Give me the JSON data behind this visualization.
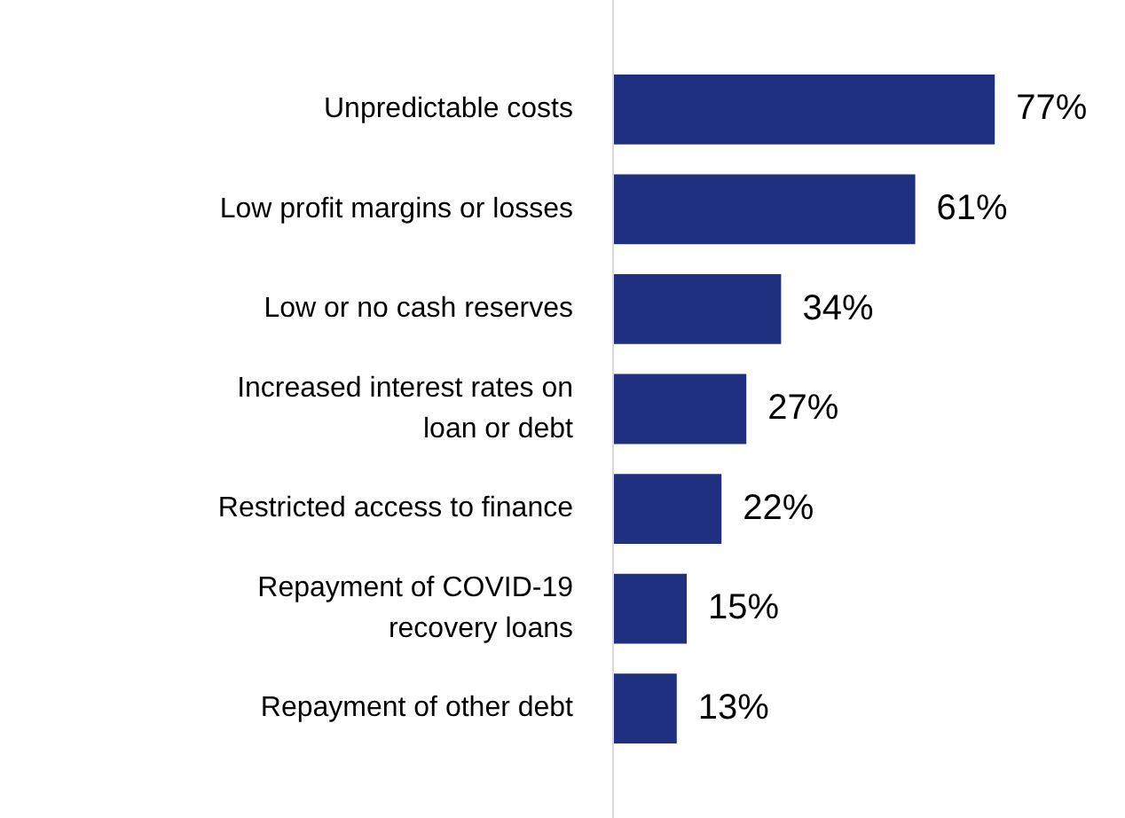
{
  "chart_data": {
    "type": "bar",
    "orientation": "horizontal",
    "tick_labels": "y",
    "categories": [
      "Unpredictable costs",
      "Low profit margins or losses",
      "Low or no cash reserves",
      "Increased interest rates on loan or debt",
      "Restricted access to finance",
      "Repayment of COVID-19 recovery loans",
      "Repayment of other debt"
    ],
    "values": [
      77,
      61,
      34,
      27,
      22,
      15,
      13
    ],
    "value_labels": [
      "77%",
      "61%",
      "34%",
      "27%",
      "22%",
      "15%",
      "13%"
    ],
    "color": "#203080"
  }
}
